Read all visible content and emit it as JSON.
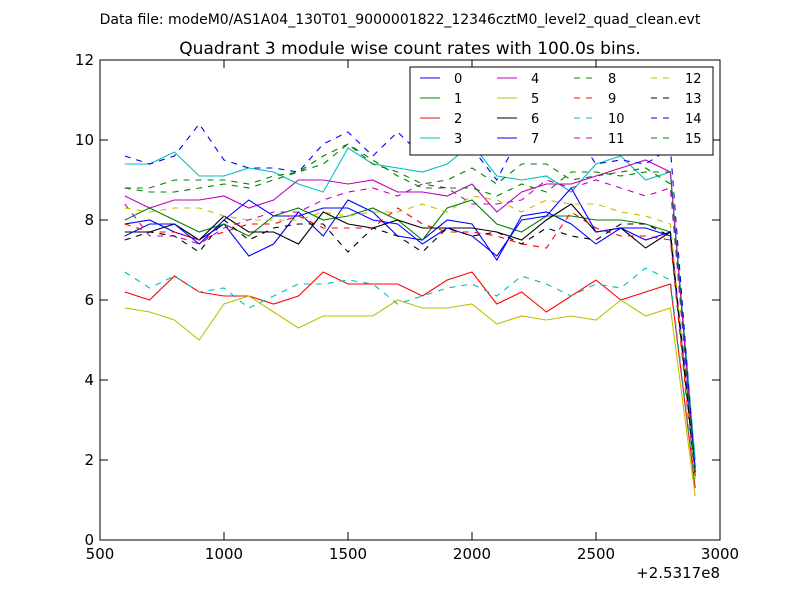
{
  "chart_data": {
    "type": "line",
    "suptitle": "Data file: modeM0/AS1A04_130T01_9000001822_12346cztM0_level2_quad_clean.evt",
    "title": "Quadrant 3 module wise count rates with 100.0s bins.",
    "xlabel": "",
    "ylabel": "",
    "x_offset_label": "+2.5317e8",
    "xlim": [
      500,
      3000
    ],
    "ylim": [
      0,
      12
    ],
    "x_ticks": [
      500,
      1000,
      1500,
      2000,
      2500,
      3000
    ],
    "x_tick_labels": [
      "500",
      "1000",
      "1500",
      "2000",
      "2500",
      "3000"
    ],
    "y_ticks": [
      0,
      2,
      4,
      6,
      8,
      10,
      12
    ],
    "y_tick_labels": [
      "0",
      "2",
      "4",
      "6",
      "8",
      "10",
      "12"
    ],
    "grid": false,
    "legend_position": "top-right",
    "legend_columns": 4,
    "x": [
      600,
      700,
      800,
      900,
      1000,
      1100,
      1200,
      1300,
      1400,
      1500,
      1600,
      1700,
      1800,
      1900,
      2000,
      2100,
      2200,
      2300,
      2400,
      2500,
      2600,
      2700,
      2800,
      2900
    ],
    "series": [
      {
        "name": "0",
        "color": "#0000ff",
        "dash": "solid",
        "values": [
          7.9,
          8.0,
          7.7,
          7.5,
          7.9,
          7.1,
          7.4,
          8.2,
          7.6,
          8.5,
          8.2,
          7.6,
          7.5,
          8.0,
          7.9,
          7.0,
          8.1,
          8.2,
          7.9,
          7.4,
          7.8,
          7.5,
          7.7,
          1.8
        ]
      },
      {
        "name": "1",
        "color": "#008000",
        "dash": "solid",
        "values": [
          8.0,
          8.3,
          8.0,
          7.7,
          7.9,
          7.6,
          8.1,
          8.3,
          8.0,
          8.1,
          8.3,
          8.0,
          7.5,
          8.3,
          8.5,
          7.9,
          7.7,
          8.1,
          8.1,
          8.0,
          8.0,
          7.9,
          7.7,
          1.6
        ]
      },
      {
        "name": "2",
        "color": "#ff0000",
        "dash": "solid",
        "values": [
          6.2,
          6.0,
          6.6,
          6.2,
          6.1,
          6.1,
          5.9,
          6.1,
          6.7,
          6.4,
          6.4,
          6.4,
          6.1,
          6.5,
          6.7,
          5.9,
          6.2,
          5.7,
          6.1,
          6.5,
          6.0,
          6.2,
          6.4,
          1.3
        ]
      },
      {
        "name": "3",
        "color": "#00bfbf",
        "dash": "solid",
        "values": [
          9.4,
          9.4,
          9.7,
          9.1,
          9.1,
          9.3,
          9.2,
          8.9,
          8.7,
          9.8,
          9.4,
          9.3,
          9.2,
          9.4,
          9.9,
          9.1,
          9.0,
          9.1,
          8.7,
          9.4,
          9.6,
          9.0,
          9.2,
          2.0
        ]
      },
      {
        "name": "4",
        "color": "#bf00bf",
        "dash": "solid",
        "values": [
          8.6,
          8.3,
          8.5,
          8.5,
          8.6,
          8.3,
          8.5,
          9.0,
          9.0,
          8.9,
          9.0,
          8.7,
          8.7,
          8.6,
          8.9,
          8.2,
          8.7,
          8.9,
          8.9,
          9.1,
          9.3,
          9.5,
          9.2,
          1.7
        ]
      },
      {
        "name": "5",
        "color": "#bfbf00",
        "dash": "solid",
        "values": [
          5.8,
          5.7,
          5.5,
          5.0,
          5.9,
          6.1,
          5.7,
          5.3,
          5.6,
          5.6,
          5.6,
          6.0,
          5.8,
          5.8,
          5.9,
          5.4,
          5.6,
          5.5,
          5.6,
          5.5,
          6.0,
          5.6,
          5.8,
          1.1
        ]
      },
      {
        "name": "6",
        "color": "#000000",
        "dash": "solid",
        "values": [
          7.7,
          7.7,
          7.9,
          7.5,
          8.1,
          7.7,
          7.7,
          7.4,
          8.2,
          7.9,
          7.8,
          8.0,
          7.8,
          7.8,
          7.8,
          7.7,
          7.5,
          8.0,
          8.4,
          7.7,
          7.8,
          7.3,
          7.7,
          1.6
        ]
      },
      {
        "name": "7",
        "color": "#0000ff",
        "dash": "solid",
        "values": [
          7.6,
          7.9,
          7.9,
          7.4,
          8.0,
          8.5,
          8.1,
          8.1,
          8.3,
          8.3,
          8.0,
          7.9,
          7.4,
          7.8,
          7.6,
          7.1,
          8.0,
          8.1,
          8.8,
          7.7,
          7.8,
          7.8,
          7.6,
          1.8
        ]
      },
      {
        "name": "8",
        "color": "#008000",
        "dash": "dashed",
        "values": [
          8.8,
          8.7,
          8.7,
          8.8,
          8.9,
          8.8,
          9.0,
          9.2,
          9.4,
          9.9,
          9.4,
          9.2,
          8.9,
          9.0,
          9.3,
          8.9,
          9.4,
          9.4,
          9.0,
          9.1,
          9.2,
          9.3,
          8.9,
          1.6
        ]
      },
      {
        "name": "9",
        "color": "#ff0000",
        "dash": "dashed",
        "values": [
          7.9,
          7.7,
          7.7,
          7.5,
          7.7,
          7.9,
          7.9,
          8.1,
          7.8,
          7.8,
          7.8,
          8.3,
          7.9,
          7.7,
          7.7,
          7.6,
          7.4,
          7.3,
          8.2,
          7.8,
          7.6,
          7.6,
          7.5,
          1.4
        ]
      },
      {
        "name": "10",
        "color": "#00bfbf",
        "dash": "dashed",
        "values": [
          6.7,
          6.3,
          6.6,
          6.2,
          6.3,
          5.8,
          6.1,
          6.4,
          6.4,
          6.5,
          6.4,
          5.9,
          6.1,
          6.3,
          6.4,
          6.1,
          6.6,
          6.4,
          6.1,
          6.4,
          6.3,
          6.8,
          6.5,
          1.4
        ]
      },
      {
        "name": "11",
        "color": "#bf00bf",
        "dash": "dashed",
        "values": [
          8.4,
          7.6,
          7.6,
          7.4,
          7.8,
          8.0,
          8.2,
          8.2,
          8.5,
          8.7,
          8.8,
          8.6,
          8.9,
          8.8,
          8.4,
          8.4,
          8.5,
          9.0,
          8.8,
          9.0,
          8.8,
          8.6,
          8.8,
          1.6
        ]
      },
      {
        "name": "12",
        "color": "#bfbf00",
        "dash": "dashed",
        "values": [
          8.3,
          8.2,
          8.3,
          8.3,
          8.1,
          8.0,
          8.0,
          8.0,
          8.2,
          8.1,
          8.2,
          8.2,
          8.4,
          8.2,
          8.6,
          8.5,
          8.2,
          8.5,
          8.4,
          8.4,
          8.2,
          8.1,
          7.9,
          1.5
        ]
      },
      {
        "name": "13",
        "color": "#000000",
        "dash": "dashed",
        "values": [
          7.5,
          7.7,
          7.6,
          7.2,
          8.0,
          7.5,
          7.8,
          7.9,
          7.9,
          7.2,
          7.8,
          7.6,
          7.2,
          7.8,
          7.6,
          7.7,
          7.4,
          7.8,
          7.6,
          7.5,
          7.9,
          7.9,
          7.6,
          1.6
        ]
      },
      {
        "name": "14",
        "color": "#0000ff",
        "dash": "dashed",
        "values": [
          9.6,
          9.4,
          9.6,
          10.4,
          9.5,
          9.3,
          9.3,
          9.2,
          9.9,
          10.2,
          9.6,
          10.2,
          9.6,
          9.8,
          9.8,
          9.0,
          10.2,
          10.3,
          10.3,
          9.4,
          9.5,
          9.4,
          9.8,
          1.7
        ]
      },
      {
        "name": "15",
        "color": "#008000",
        "dash": "dashed",
        "values": [
          8.8,
          8.8,
          9.0,
          9.0,
          9.0,
          8.9,
          9.1,
          9.2,
          9.6,
          9.9,
          9.5,
          9.1,
          8.8,
          8.8,
          8.8,
          8.6,
          8.9,
          8.7,
          9.2,
          9.2,
          9.1,
          9.2,
          9.2,
          1.6
        ]
      }
    ]
  }
}
